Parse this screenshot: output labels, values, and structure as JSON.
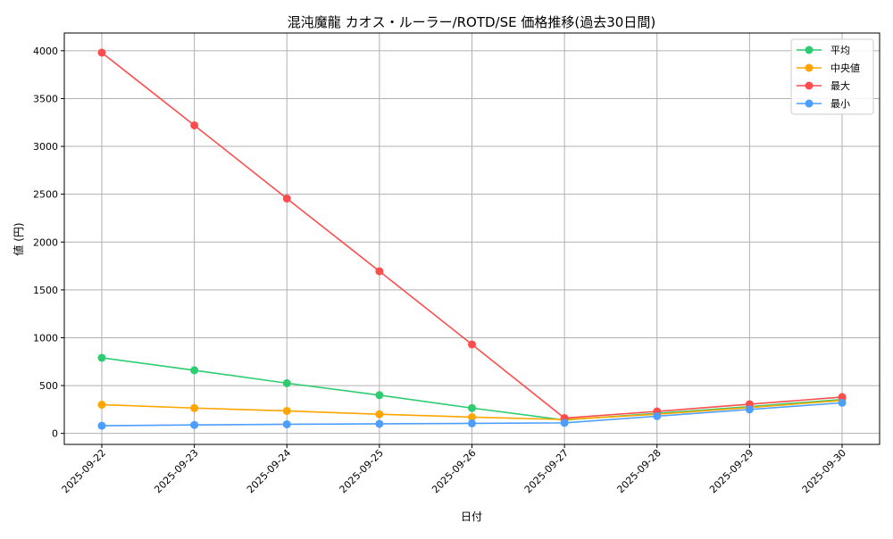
{
  "chart_data": {
    "type": "line",
    "title": "混沌魔龍 カオス・ルーラー/ROTD/SE 価格推移(過去30日間)",
    "xlabel": "日付",
    "ylabel": "値 (円)",
    "categories": [
      "2025-09-22",
      "2025-09-23",
      "2025-09-24",
      "2025-09-25",
      "2025-09-26",
      "2025-09-27",
      "2025-09-28",
      "2025-09-29",
      "2025-09-30"
    ],
    "yticks": [
      0,
      500,
      1000,
      1500,
      2000,
      2500,
      3000,
      3500,
      4000
    ],
    "ylim": [
      -115,
      4185
    ],
    "grid": true,
    "legend_position": "top-right",
    "series": [
      {
        "name": "平均",
        "color": "#2ecc71",
        "values": [
          790,
          660,
          525,
          400,
          265,
          140,
          210,
          280,
          355
        ]
      },
      {
        "name": "中央値",
        "color": "#ffa500",
        "values": [
          300,
          265,
          235,
          200,
          170,
          145,
          200,
          270,
          345
        ]
      },
      {
        "name": "最大",
        "color": "#ff4d4d",
        "values": [
          3980,
          3220,
          2455,
          1695,
          930,
          160,
          230,
          305,
          380
        ]
      },
      {
        "name": "最小",
        "color": "#4d9eff",
        "values": [
          80,
          88,
          95,
          100,
          105,
          110,
          180,
          250,
          320
        ]
      }
    ]
  }
}
